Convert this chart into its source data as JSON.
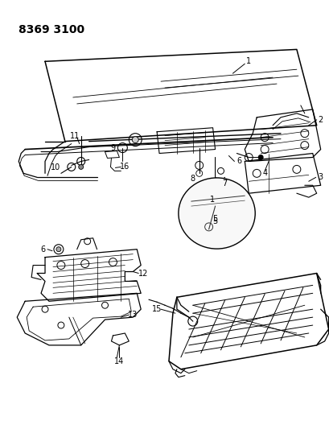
{
  "title": "8369 3100",
  "background_color": "#ffffff",
  "title_fontsize": 10,
  "title_fontweight": "bold",
  "fig_width": 4.1,
  "fig_height": 5.33,
  "dpi": 100,
  "label_color": "#000000",
  "line_color": "#000000"
}
